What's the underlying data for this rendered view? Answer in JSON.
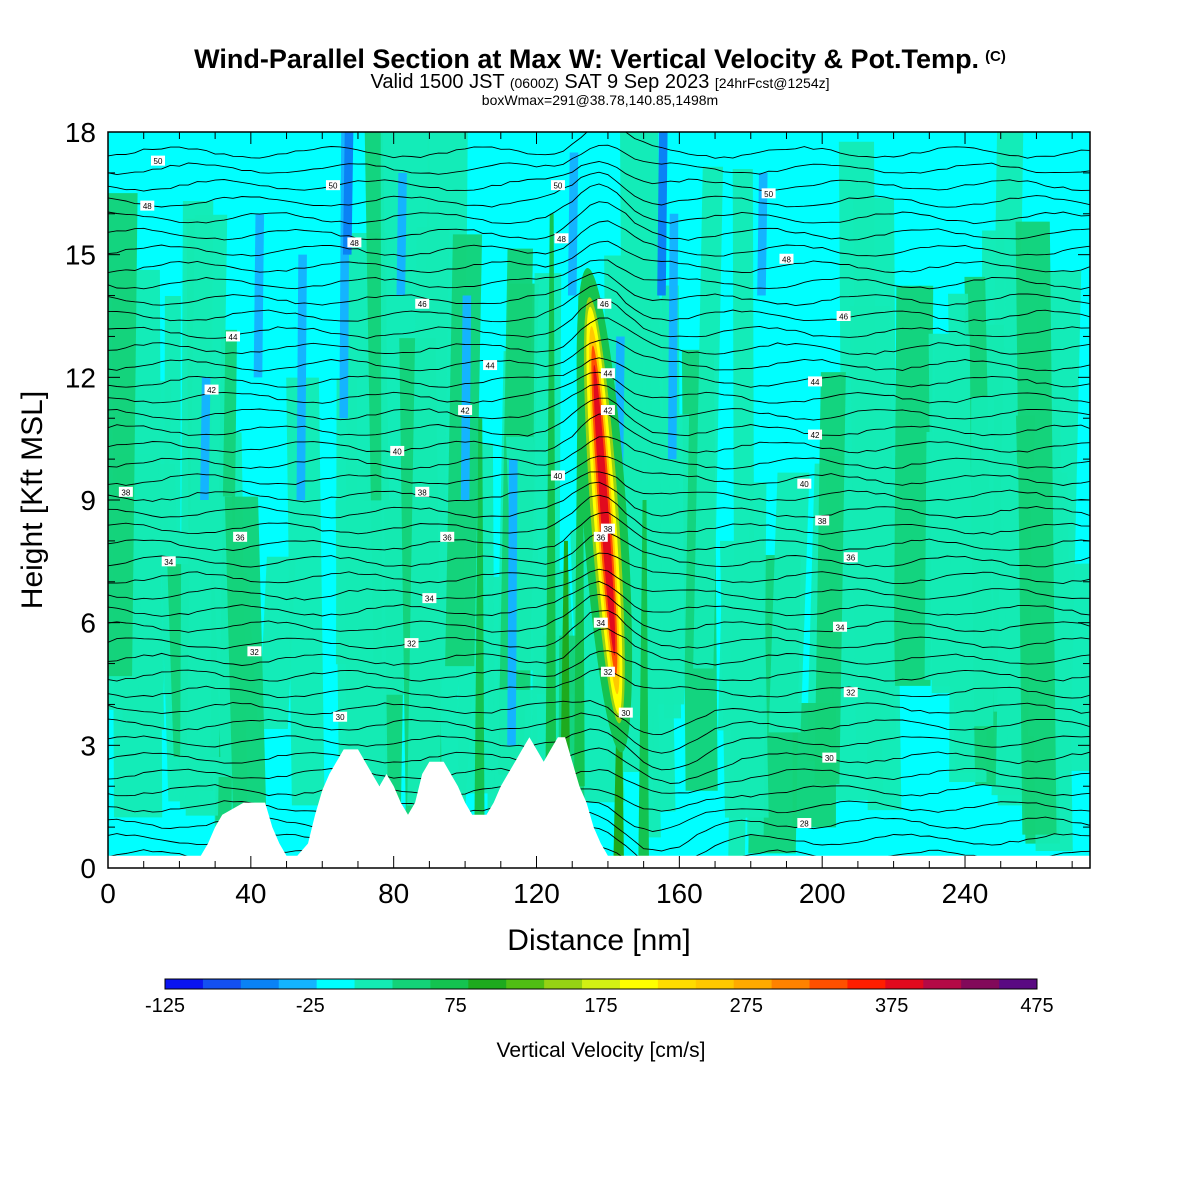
{
  "header": {
    "title": "Wind-Parallel Section at Max W: Vertical Velocity & Pot.Temp.",
    "copyright": "(C)",
    "valid_prefix": "Valid 1500 JST",
    "valid_utc": "(0600Z)",
    "valid_date": "SAT 9 Sep 2023",
    "forecast": "[24hrFcst@1254z]",
    "box_info": "boxWmax=291@38.78,140.85,1498m"
  },
  "chart_data": {
    "type": "heatmap",
    "xlabel": "Distance [nm]",
    "ylabel": "Height [Kft MSL]",
    "xlim": [
      0,
      275
    ],
    "ylim": [
      0,
      18
    ],
    "x_ticks": [
      "0",
      "40",
      "80",
      "120",
      "160",
      "200",
      "240"
    ],
    "y_ticks": [
      "0",
      "3",
      "6",
      "9",
      "12",
      "15",
      "18"
    ],
    "grid": false,
    "colorbar": {
      "label": "Vertical Velocity [cm/s]",
      "ticks": [
        "-125",
        "-25",
        "75",
        "175",
        "275",
        "375",
        "475"
      ],
      "colors": [
        "#0a14f0",
        "#1450f0",
        "#0a82f5",
        "#14b4ff",
        "#00ffff",
        "#14ebb4",
        "#14d278",
        "#14c350",
        "#1eaa1e",
        "#50be14",
        "#96d214",
        "#d2f014",
        "#ffff00",
        "#ffdc00",
        "#ffc800",
        "#ffaa00",
        "#ff8200",
        "#ff5000",
        "#ff1e00",
        "#e10a1e",
        "#b40a46",
        "#820a5a",
        "#5a0a82"
      ]
    },
    "max_updraft": {
      "x": 139,
      "z_top": 13.5,
      "z_bottom": 4.0,
      "peak_cm_s": 400
    },
    "terrain_kft": [
      [
        0,
        0.3
      ],
      [
        26,
        0.3
      ],
      [
        28,
        0.6
      ],
      [
        30,
        1.0
      ],
      [
        32,
        1.3
      ],
      [
        38,
        1.6
      ],
      [
        44,
        1.6
      ],
      [
        46,
        1.0
      ],
      [
        48,
        0.6
      ],
      [
        50,
        0.3
      ],
      [
        53,
        0.3
      ],
      [
        56,
        0.6
      ],
      [
        58,
        1.3
      ],
      [
        60,
        1.9
      ],
      [
        62,
        2.3
      ],
      [
        64,
        2.6
      ],
      [
        66,
        2.9
      ],
      [
        70,
        2.9
      ],
      [
        72,
        2.6
      ],
      [
        74,
        2.3
      ],
      [
        76,
        2.0
      ],
      [
        78,
        2.3
      ],
      [
        80,
        2.0
      ],
      [
        82,
        1.6
      ],
      [
        84,
        1.3
      ],
      [
        86,
        1.6
      ],
      [
        88,
        2.3
      ],
      [
        90,
        2.6
      ],
      [
        94,
        2.6
      ],
      [
        96,
        2.3
      ],
      [
        98,
        2.0
      ],
      [
        100,
        1.6
      ],
      [
        102,
        1.3
      ],
      [
        106,
        1.3
      ],
      [
        108,
        1.6
      ],
      [
        110,
        2.0
      ],
      [
        112,
        2.3
      ],
      [
        114,
        2.6
      ],
      [
        116,
        2.9
      ],
      [
        118,
        3.2
      ],
      [
        120,
        2.9
      ],
      [
        122,
        2.6
      ],
      [
        124,
        2.9
      ],
      [
        126,
        3.2
      ],
      [
        128,
        3.2
      ],
      [
        130,
        2.6
      ],
      [
        132,
        2.0
      ],
      [
        134,
        1.6
      ],
      [
        136,
        1.0
      ],
      [
        138,
        0.6
      ],
      [
        140,
        0.3
      ],
      [
        148,
        0.3
      ]
    ],
    "isentrope_labels": [
      {
        "x": 14,
        "z": 17.3,
        "text": "50"
      },
      {
        "x": 63,
        "z": 16.7,
        "text": "50"
      },
      {
        "x": 126,
        "z": 16.7,
        "text": "50"
      },
      {
        "x": 185,
        "z": 16.5,
        "text": "50"
      },
      {
        "x": 11,
        "z": 16.2,
        "text": "48"
      },
      {
        "x": 69,
        "z": 15.3,
        "text": "48"
      },
      {
        "x": 127,
        "z": 15.4,
        "text": "48"
      },
      {
        "x": 190,
        "z": 14.9,
        "text": "48"
      },
      {
        "x": 88,
        "z": 13.8,
        "text": "46"
      },
      {
        "x": 139,
        "z": 13.8,
        "text": "46"
      },
      {
        "x": 206,
        "z": 13.5,
        "text": "46"
      },
      {
        "x": 35,
        "z": 13.0,
        "text": "44"
      },
      {
        "x": 107,
        "z": 12.3,
        "text": "44"
      },
      {
        "x": 140,
        "z": 12.1,
        "text": "44"
      },
      {
        "x": 198,
        "z": 11.9,
        "text": "44"
      },
      {
        "x": 29,
        "z": 11.7,
        "text": "42"
      },
      {
        "x": 100,
        "z": 11.2,
        "text": "42"
      },
      {
        "x": 140,
        "z": 11.2,
        "text": "42"
      },
      {
        "x": 198,
        "z": 10.6,
        "text": "42"
      },
      {
        "x": 81,
        "z": 10.2,
        "text": "40"
      },
      {
        "x": 126,
        "z": 9.6,
        "text": "40"
      },
      {
        "x": 195,
        "z": 9.4,
        "text": "40"
      },
      {
        "x": 5,
        "z": 9.2,
        "text": "38"
      },
      {
        "x": 88,
        "z": 9.2,
        "text": "38"
      },
      {
        "x": 140,
        "z": 8.3,
        "text": "38"
      },
      {
        "x": 200,
        "z": 8.5,
        "text": "38"
      },
      {
        "x": 37,
        "z": 8.1,
        "text": "36"
      },
      {
        "x": 95,
        "z": 8.1,
        "text": "36"
      },
      {
        "x": 138,
        "z": 8.1,
        "text": "36"
      },
      {
        "x": 208,
        "z": 7.6,
        "text": "36"
      },
      {
        "x": 17,
        "z": 7.5,
        "text": "34"
      },
      {
        "x": 90,
        "z": 6.6,
        "text": "34"
      },
      {
        "x": 138,
        "z": 6.0,
        "text": "34"
      },
      {
        "x": 205,
        "z": 5.9,
        "text": "34"
      },
      {
        "x": 41,
        "z": 5.3,
        "text": "32"
      },
      {
        "x": 85,
        "z": 5.5,
        "text": "32"
      },
      {
        "x": 140,
        "z": 4.8,
        "text": "32"
      },
      {
        "x": 208,
        "z": 4.3,
        "text": "32"
      },
      {
        "x": 65,
        "z": 3.7,
        "text": "30"
      },
      {
        "x": 145,
        "z": 3.8,
        "text": "30"
      },
      {
        "x": 202,
        "z": 2.7,
        "text": "30"
      },
      {
        "x": 195,
        "z": 1.1,
        "text": "28"
      }
    ]
  }
}
